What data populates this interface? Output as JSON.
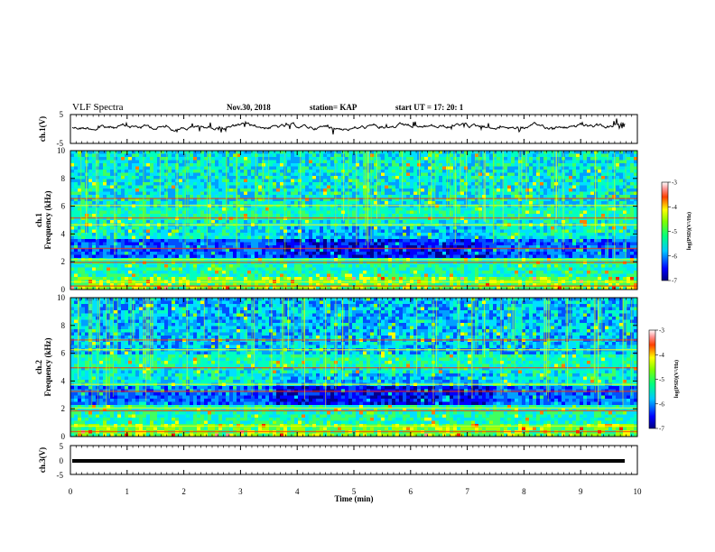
{
  "header": {
    "title": "VLF Spectra",
    "date": "Nov.30, 2018",
    "station": "station= KAP",
    "start": "start  UT  =    17: 20: 1"
  },
  "chart_data": [
    {
      "type": "line",
      "name": "ch1_waveform",
      "ylabel": "ch.1(V)",
      "ylim": [
        -5,
        5
      ],
      "xlim": [
        0,
        10
      ],
      "yticks": [
        "5",
        "-5"
      ],
      "color": "#000000"
    },
    {
      "type": "heatmap",
      "name": "ch1_spectrogram",
      "ylabel_top": "ch.1",
      "ylabel": "Frequency  (kHz)",
      "ylim": [
        0,
        10
      ],
      "xlim": [
        0,
        10
      ],
      "yticks": [
        "0",
        "2",
        "4",
        "6",
        "8",
        "10"
      ],
      "colorbar": {
        "label": "log(PSD)(V²/Hz)",
        "ticks": [
          "-3",
          "-4",
          "-5",
          "-6",
          "-7"
        ],
        "range": [
          -7,
          -3
        ]
      }
    },
    {
      "type": "heatmap",
      "name": "ch2_spectrogram",
      "ylabel_top": "ch.2",
      "ylabel": "Frequency  (kHz)",
      "ylim": [
        0,
        10
      ],
      "xlim": [
        0,
        10
      ],
      "yticks": [
        "0",
        "2",
        "4",
        "6",
        "8",
        "10"
      ],
      "colorbar": {
        "label": "log(PSD)(V²/Hz)",
        "ticks": [
          "-3",
          "-4",
          "-5",
          "-6",
          "-7"
        ],
        "range": [
          -7,
          -3
        ]
      }
    },
    {
      "type": "line",
      "name": "ch3_waveform",
      "ylabel": "ch.3(V)",
      "ylim": [
        -5,
        5
      ],
      "xlim": [
        0,
        10
      ],
      "yticks": [
        "5",
        "0",
        "-5"
      ],
      "values_constant": 0,
      "color": "#000000"
    }
  ],
  "xaxis": {
    "label": "Time  (min)",
    "ticks": [
      "0",
      "1",
      "2",
      "3",
      "4",
      "5",
      "6",
      "7",
      "8",
      "9",
      "10"
    ],
    "range": [
      0,
      10
    ]
  }
}
